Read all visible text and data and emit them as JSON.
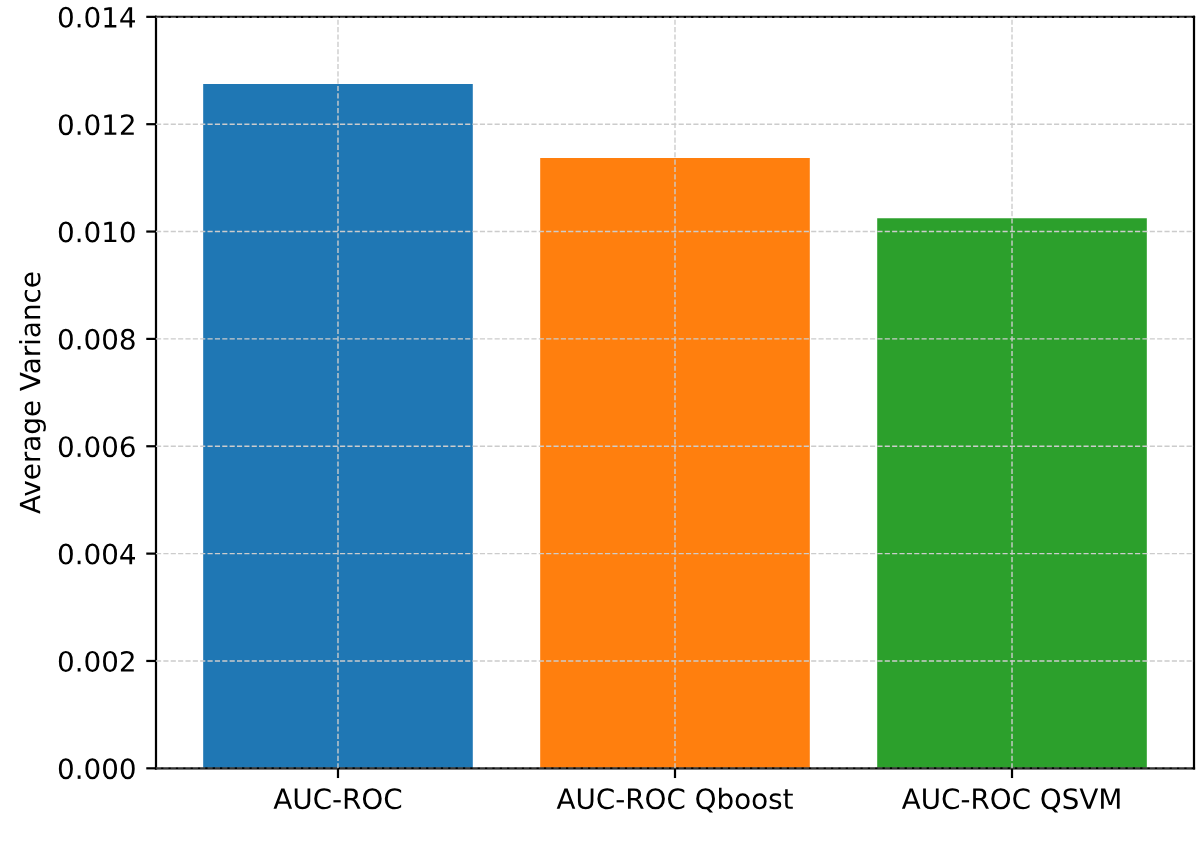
{
  "chart_data": {
    "type": "bar",
    "ylabel": "Average Variance",
    "categories": [
      "AUC-ROC",
      "AUC-ROC Qboost",
      "AUC-ROC QSVM"
    ],
    "values": [
      0.01275,
      0.01137,
      0.01025
    ],
    "colors": [
      "#1f77b4",
      "#ff7f0e",
      "#2ca02c"
    ],
    "ylim": [
      0,
      0.014
    ],
    "yticks": [
      {
        "value": 0,
        "label": "0.000"
      },
      {
        "value": 0.002,
        "label": "0.002"
      },
      {
        "value": 0.004,
        "label": "0.004"
      },
      {
        "value": 0.006,
        "label": "0.006"
      },
      {
        "value": 0.008,
        "label": "0.008"
      },
      {
        "value": 0.01,
        "label": "0.010"
      },
      {
        "value": 0.012,
        "label": "0.012"
      },
      {
        "value": 0.014,
        "label": "0.014"
      }
    ],
    "grid": true
  }
}
